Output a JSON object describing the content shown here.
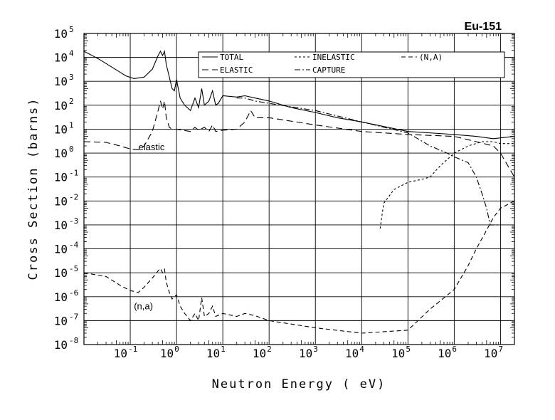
{
  "chart_data": {
    "type": "line",
    "title": "Eu-151",
    "xlabel": "Neutron Energy ( eV)",
    "ylabel": "Cross Section (barns)",
    "x_scale": "log",
    "y_scale": "log",
    "xlim": [
      0.01,
      20000000
    ],
    "ylim": [
      1e-08,
      100000
    ],
    "grid": true,
    "legend_position": "top-right",
    "x_ticks": [
      {
        "base": "10",
        "exp": "-1",
        "value": 0.1
      },
      {
        "base": "10",
        "exp": "0",
        "value": 1
      },
      {
        "base": "10",
        "exp": "1",
        "value": 10
      },
      {
        "base": "10",
        "exp": "2",
        "value": 100
      },
      {
        "base": "10",
        "exp": "3",
        "value": 1000
      },
      {
        "base": "10",
        "exp": "4",
        "value": 10000
      },
      {
        "base": "10",
        "exp": "5",
        "value": 100000
      },
      {
        "base": "10",
        "exp": "6",
        "value": 1000000
      },
      {
        "base": "10",
        "exp": "7",
        "value": 10000000
      }
    ],
    "y_ticks": [
      {
        "base": "10",
        "exp": "5",
        "value": 100000
      },
      {
        "base": "10",
        "exp": "4",
        "value": 10000
      },
      {
        "base": "10",
        "exp": "3",
        "value": 1000
      },
      {
        "base": "10",
        "exp": "2",
        "value": 100
      },
      {
        "base": "10",
        "exp": "1",
        "value": 10
      },
      {
        "base": "10",
        "exp": "0",
        "value": 1
      },
      {
        "base": "10",
        "exp": "-1",
        "value": 0.1
      },
      {
        "base": "10",
        "exp": "-2",
        "value": 0.01
      },
      {
        "base": "10",
        "exp": "-3",
        "value": 0.001
      },
      {
        "base": "10",
        "exp": "-4",
        "value": 0.0001
      },
      {
        "base": "10",
        "exp": "-5",
        "value": 1e-05
      },
      {
        "base": "10",
        "exp": "-6",
        "value": 1e-06
      },
      {
        "base": "10",
        "exp": "-7",
        "value": 1e-07
      },
      {
        "base": "10",
        "exp": "-8",
        "value": 1e-08
      }
    ],
    "legend": [
      "TOTAL",
      "ELASTIC",
      "INELASTIC",
      "CAPTURE",
      "(N,A)"
    ],
    "annotations": [
      {
        "text": "elastic",
        "x": 0.15,
        "y": 1.3
      },
      {
        "text": "(n,a)",
        "x": 0.12,
        "y": 3e-07
      }
    ],
    "series": [
      {
        "name": "TOTAL",
        "style": "solid",
        "points": [
          [
            0.01,
            18000
          ],
          [
            0.02,
            9000
          ],
          [
            0.05,
            3000
          ],
          [
            0.08,
            1700
          ],
          [
            0.12,
            1300
          ],
          [
            0.2,
            1500
          ],
          [
            0.3,
            3200
          ],
          [
            0.4,
            12000
          ],
          [
            0.45,
            18000
          ],
          [
            0.5,
            12000
          ],
          [
            0.55,
            18000
          ],
          [
            0.6,
            5000
          ],
          [
            0.7,
            1500
          ],
          [
            0.8,
            500
          ],
          [
            0.9,
            400
          ],
          [
            1,
            1200
          ],
          [
            1.2,
            200
          ],
          [
            1.5,
            100
          ],
          [
            2,
            60
          ],
          [
            2.5,
            200
          ],
          [
            3,
            80
          ],
          [
            3.5,
            500
          ],
          [
            4,
            100
          ],
          [
            5,
            150
          ],
          [
            6,
            400
          ],
          [
            7,
            100
          ],
          [
            8,
            120
          ],
          [
            10,
            250
          ],
          [
            20,
            220
          ],
          [
            30,
            250
          ],
          [
            50,
            200
          ],
          [
            100,
            150
          ],
          [
            300,
            80
          ],
          [
            1000,
            50
          ],
          [
            3000,
            30
          ],
          [
            10000,
            20
          ],
          [
            100000,
            8
          ],
          [
            1000000,
            6
          ],
          [
            3000000,
            5
          ],
          [
            7000000,
            4
          ],
          [
            20000000,
            5
          ]
        ]
      },
      {
        "name": "ELASTIC",
        "style": "long-dash",
        "points": [
          [
            0.01,
            3
          ],
          [
            0.03,
            2.8
          ],
          [
            0.06,
            2
          ],
          [
            0.1,
            1.5
          ],
          [
            0.15,
            1.4
          ],
          [
            0.2,
            2
          ],
          [
            0.3,
            8
          ],
          [
            0.4,
            60
          ],
          [
            0.45,
            150
          ],
          [
            0.5,
            70
          ],
          [
            0.55,
            150
          ],
          [
            0.6,
            30
          ],
          [
            0.7,
            12
          ],
          [
            0.8,
            10
          ],
          [
            1,
            10
          ],
          [
            2,
            8
          ],
          [
            2.5,
            12
          ],
          [
            3,
            9
          ],
          [
            4,
            12
          ],
          [
            5,
            8
          ],
          [
            6,
            15
          ],
          [
            7,
            8
          ],
          [
            10,
            9
          ],
          [
            20,
            10
          ],
          [
            30,
            20
          ],
          [
            40,
            60
          ],
          [
            50,
            30
          ],
          [
            100,
            30
          ],
          [
            1000,
            15
          ],
          [
            10000,
            8
          ],
          [
            100000,
            6
          ],
          [
            1000000,
            5
          ],
          [
            3000000,
            3
          ],
          [
            7000000,
            2
          ],
          [
            10000000,
            1
          ],
          [
            20000000,
            0.1
          ]
        ]
      },
      {
        "name": "INELASTIC",
        "style": "short-dash",
        "points": [
          [
            25000,
            0.0007
          ],
          [
            30000,
            0.008
          ],
          [
            50000,
            0.03
          ],
          [
            100000,
            0.06
          ],
          [
            200000,
            0.08
          ],
          [
            300000,
            0.1
          ],
          [
            500000,
            0.3
          ],
          [
            1000000,
            1
          ],
          [
            2000000,
            2
          ],
          [
            4000000,
            3
          ],
          [
            7000000,
            3
          ],
          [
            10000000,
            2.5
          ],
          [
            20000000,
            2.5
          ]
        ]
      },
      {
        "name": "CAPTURE",
        "style": "dash-dot",
        "points": [
          [
            20,
            200
          ],
          [
            30,
            200
          ],
          [
            50,
            150
          ],
          [
            100,
            120
          ],
          [
            1000,
            60
          ],
          [
            10000,
            20
          ],
          [
            100000,
            7
          ],
          [
            300000,
            2
          ],
          [
            700000,
            1
          ],
          [
            1000000,
            0.7
          ],
          [
            2000000,
            0.4
          ],
          [
            3000000,
            0.1
          ],
          [
            4000000,
            0.02
          ],
          [
            5000000,
            0.005
          ],
          [
            6000000,
            0.001
          ],
          [
            8000000,
            0.001
          ],
          [
            10000000,
            0.001
          ]
        ]
      },
      {
        "name": "(N,A)",
        "style": "dash",
        "points": [
          [
            0.01,
            1e-05
          ],
          [
            0.03,
            7e-06
          ],
          [
            0.06,
            3e-06
          ],
          [
            0.1,
            1.8e-06
          ],
          [
            0.15,
            1.5e-06
          ],
          [
            0.2,
            2.5e-06
          ],
          [
            0.3,
            6e-06
          ],
          [
            0.4,
            1.2e-05
          ],
          [
            0.45,
            1.5e-05
          ],
          [
            0.5,
            1e-05
          ],
          [
            0.55,
            1.4e-05
          ],
          [
            0.6,
            4e-06
          ],
          [
            0.7,
            1.5e-06
          ],
          [
            0.8,
            8e-07
          ],
          [
            1,
            1.2e-06
          ],
          [
            1.2,
            4e-07
          ],
          [
            1.5,
            2e-07
          ],
          [
            2,
            1e-07
          ],
          [
            2.5,
            2e-07
          ],
          [
            3,
            1e-07
          ],
          [
            3.5,
            9e-07
          ],
          [
            4,
            1.5e-07
          ],
          [
            5,
            2e-07
          ],
          [
            6,
            4e-07
          ],
          [
            7,
            1.5e-07
          ],
          [
            10,
            2e-07
          ],
          [
            20,
            1.5e-07
          ],
          [
            30,
            2e-07
          ],
          [
            50,
            1.6e-07
          ],
          [
            100,
            1e-07
          ],
          [
            1000,
            5e-08
          ],
          [
            10000,
            3e-08
          ],
          [
            100000,
            4e-08
          ],
          [
            300000,
            3e-07
          ],
          [
            1000000,
            2e-06
          ],
          [
            2000000,
            2e-05
          ],
          [
            3000000,
            0.0001
          ],
          [
            5000000,
            0.0006
          ],
          [
            7000000,
            0.002
          ],
          [
            10000000,
            0.005
          ],
          [
            20000000,
            0.01
          ]
        ]
      }
    ]
  }
}
